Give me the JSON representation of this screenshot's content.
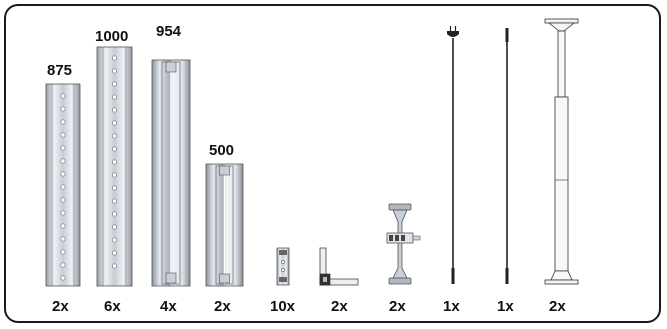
{
  "parts": [
    {
      "id": "profile-875",
      "length": "875",
      "quantity": "2x"
    },
    {
      "id": "profile-1000",
      "length": "1000",
      "quantity": "6x"
    },
    {
      "id": "profile-954",
      "length": "954",
      "quantity": "4x"
    },
    {
      "id": "profile-500",
      "length": "500",
      "quantity": "2x"
    },
    {
      "id": "connector-block",
      "length": "",
      "quantity": "10x"
    },
    {
      "id": "corner-bracket",
      "length": "",
      "quantity": "2x"
    },
    {
      "id": "h-bracket",
      "length": "",
      "quantity": "2x"
    },
    {
      "id": "rod-with-plug",
      "length": "",
      "quantity": "1x"
    },
    {
      "id": "thin-rod",
      "length": "",
      "quantity": "1x"
    },
    {
      "id": "telescopic-pole",
      "length": "",
      "quantity": "2x"
    }
  ],
  "colors": {
    "frame": "#1a1a1a",
    "metal_light": "#e6eaef",
    "metal_mid": "#b9c0c9",
    "metal_dark": "#8c939c",
    "text": "#111111"
  }
}
